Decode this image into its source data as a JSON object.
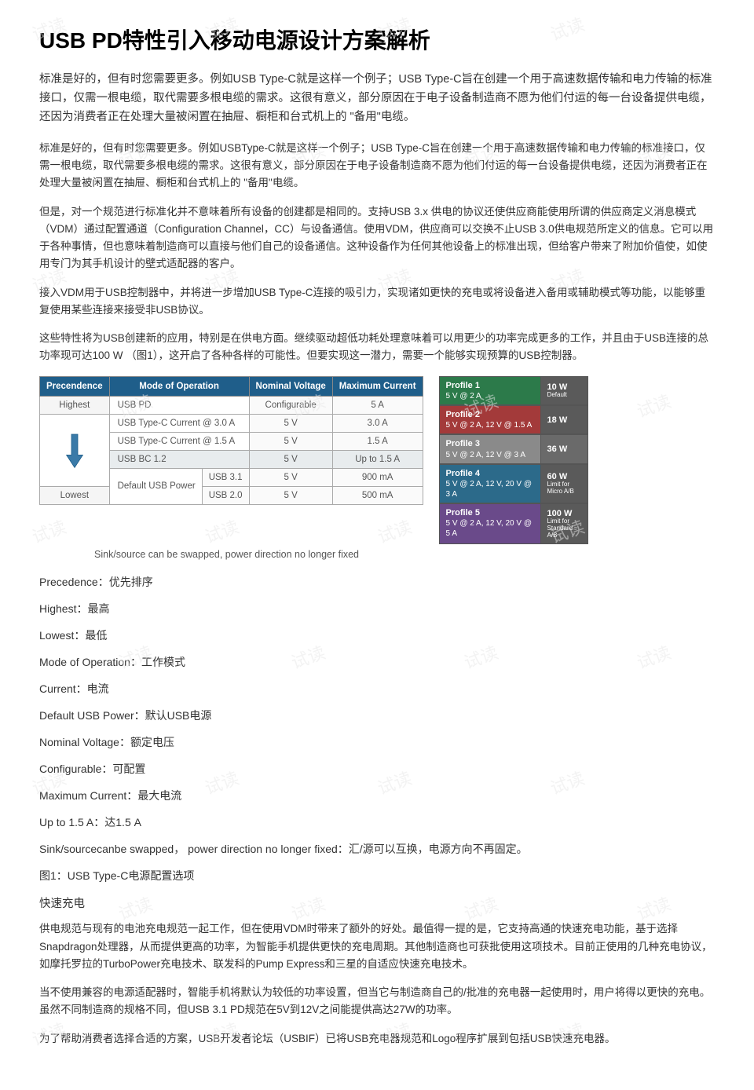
{
  "title": "USB PD特性引入移动电源设计方案解析",
  "paragraphs": {
    "p1": "标准是好的，但有时您需要更多。例如USB Type-C就是这样一个例子；USB Type-C旨在创建一个用于高速数据传输和电力传输的标准接口，仅需一根电缆，取代需要多根电缆的需求。这很有意义，部分原因在于电子设备制造商不愿为他们付运的每一台设备提供电缆，还因为消费者正在处理大量被闲置在抽屉、橱柜和台式机上的 \"备用\"电缆。",
    "p2": "标准是好的，但有时您需要更多。例如USBType-C就是这样一个例子；USB Type-C旨在创建一个用于高速数据传输和电力传输的标准接口，仅需一根电缆，取代需要多根电缆的需求。这很有意义，部分原因在于电子设备制造商不愿为他们付运的每一台设备提供电缆，还因为消费者正在处理大量被闲置在抽屉、橱柜和台式机上的 \"备用\"电缆。",
    "p3": "但是，对一个规范进行标准化并不意味着所有设备的创建都是相同的。支持USB 3.x 供电的协议还使供应商能使用所谓的供应商定义消息模式（VDM）通过配置通道（Configuration Channel，CC）与设备通信。使用VDM，供应商可以交换不止USB 3.0供电规范所定义的信息。它可以用于各种事情，但也意味着制造商可以直接与他们自己的设备通信。这种设备作为任何其他设备上的标准出现，但给客户带来了附加价值使，如使用专门为其手机设计的壁式适配器的客户。",
    "p4": "接入VDM用于USB控制器中，并将进一步增加USB Type-C连接的吸引力，实现诸如更快的充电或将设备进入备用或辅助模式等功能，以能够重复使用某些连接来接受非USB协议。",
    "p5": "这些特性将为USB创建新的应用，特别是在供电方面。继续驱动超低功耗处理意味着可以用更少的功率完成更多的工作，并且由于USB连接的总功率现可达100 W （图1），这开启了各种各样的可能性。但要实现这一潜力，需要一个能够实现预算的USB控制器。",
    "p6": "供电规范与现有的电池充电规范一起工作，但在使用VDM时带来了额外的好处。最值得一提的是，它支持高通的快速充电功能，基于选择Snapdragon处理器，从而提供更高的功率，为智能手机提供更快的充电周期。其他制造商也可获批使用这项技术。目前正使用的几种充电协议，如摩托罗拉的TurboPower充电技术、联发科的Pump Express和三星的自适应快速充电技术。",
    "p7": "当不使用兼容的电源适配器时，智能手机将默认为较低的功率设置，但当它与制造商自己的/批准的充电器一起使用时，用户将得以更快的充电。虽然不同制造商的规格不同，但USB 3.1 PD规范在5V到12V之间能提供高达27W的功率。",
    "p8": "为了帮助消费者选择合适的方案，USB开发者论坛（USBIF）已将USB充电器规范和Logo程序扩展到包括USB快速充电器。"
  },
  "table_left": {
    "headers": [
      "Precendence",
      "Mode of Operation",
      "Nominal Voltage",
      "Maximum Current"
    ],
    "precedence_top": "Highest",
    "precedence_bottom": "Lowest",
    "rows": [
      {
        "mode": "USB PD",
        "sub": "",
        "voltage": "Configurable",
        "current": "5 A"
      },
      {
        "mode": "USB Type-C Current @ 3.0 A",
        "sub": "",
        "voltage": "5 V",
        "current": "3.0 A"
      },
      {
        "mode": "USB Type-C Current @ 1.5 A",
        "sub": "",
        "voltage": "5 V",
        "current": "1.5 A"
      },
      {
        "mode": "USB BC 1.2",
        "sub": "",
        "voltage": "5 V",
        "current": "Up to 1.5 A",
        "shaded": true
      },
      {
        "mode": "Default USB Power",
        "sub": "USB 3.1",
        "voltage": "5 V",
        "current": "900 mA"
      },
      {
        "mode": "",
        "sub": "USB 2.0",
        "voltage": "5 V",
        "current": "500 mA"
      }
    ],
    "caption": "Sink/source can be swapped, power direction no longer fixed"
  },
  "profiles": [
    {
      "title": "Profile 1",
      "detail": "5 V @ 2 A",
      "power": "10 W",
      "note": "Default",
      "bg_l": "#2c7a4a",
      "bg_r": "#5a5a5a"
    },
    {
      "title": "Profile 2",
      "detail": "5 V @ 2 A, 12 V @ 1.5 A",
      "power": "18 W",
      "note": "",
      "bg_l": "#a33a3a",
      "bg_r": "#5a5a5a"
    },
    {
      "title": "Profile 3",
      "detail": "5 V @ 2 A, 12 V @ 3 A",
      "power": "36 W",
      "note": "",
      "bg_l": "#8a8a8a",
      "bg_r": "#6a6a6a"
    },
    {
      "title": "Profile 4",
      "detail": "5 V @ 2 A, 12 V, 20 V @ 3 A",
      "power": "60 W",
      "note": "Limit for Micro A/B",
      "bg_l": "#2c6a8a",
      "bg_r": "#5a5a5a"
    },
    {
      "title": "Profile 5",
      "detail": "5 V @ 2 A, 12 V, 20 V @ 5 A",
      "power": "100 W",
      "note": "Limit for Standard A/B",
      "bg_l": "#6a4a8a",
      "bg_r": "#5a5a5a"
    }
  ],
  "definitions": [
    "Precedence：优先排序",
    "Highest：最高",
    "Lowest：最低",
    "Mode of Operation：工作模式",
    "Current：电流",
    "Default USB Power：默认USB电源",
    "Nominal Voltage：额定电压",
    "Configurable：可配置",
    "Maximum Current：最大电流",
    "Up to 1.5 A：达1.5 A",
    "Sink/sourcecanbe swapped， power direction no longer fixed：汇/源可以互换，电源方向不再固定。",
    "图1：USB Type-C电源配置选项"
  ],
  "subhead_fast": "快速充电",
  "watermark_text": "试读",
  "colors": {
    "header_bg": "#1f5e8a",
    "body_text": "#333333",
    "caption_text": "#555555"
  }
}
